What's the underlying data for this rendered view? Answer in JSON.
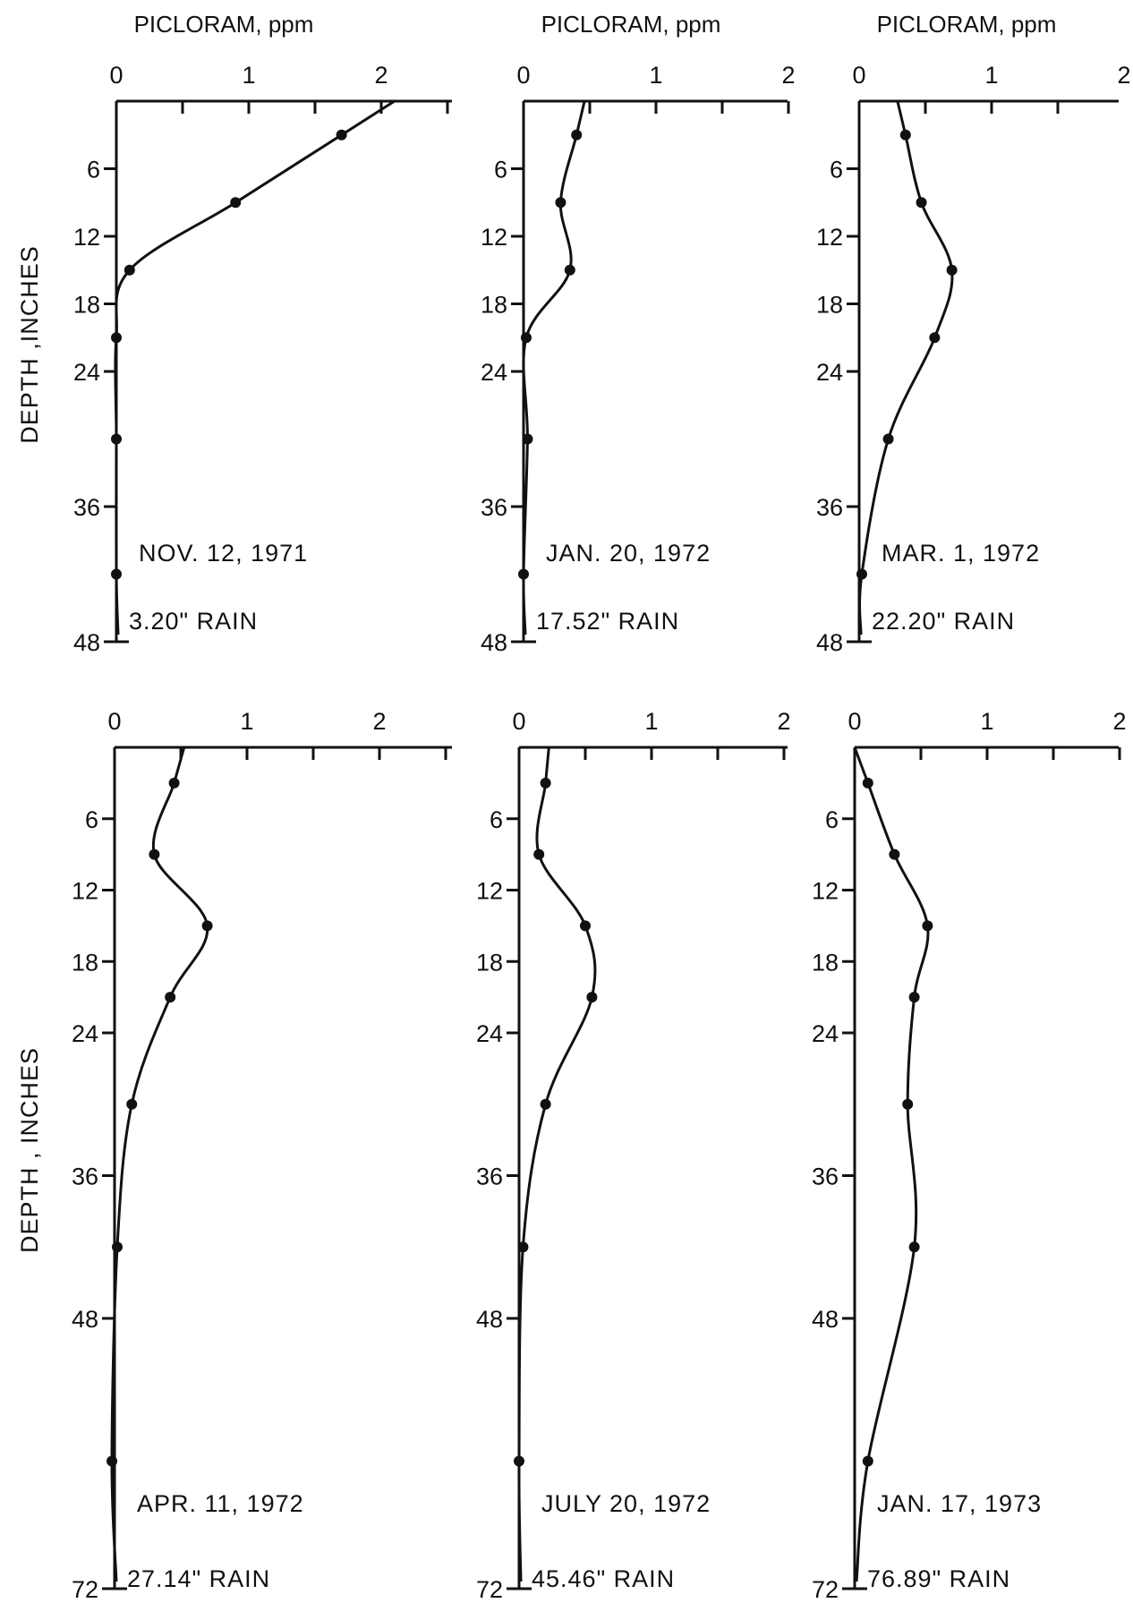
{
  "chart_data": [
    {
      "type": "line",
      "date": "NOV. 12, 1971",
      "rain": "3.20\" RAIN",
      "xlabel": "PICLORAM, ppm",
      "ylabel": "DEPTH ,INCHES",
      "xlim": [
        0,
        2
      ],
      "ylim": [
        0,
        48
      ],
      "x_ticks": [
        "0",
        "1",
        "2"
      ],
      "y_ticks": [
        "6",
        "12",
        "18",
        "24",
        "36",
        "48"
      ],
      "points": [
        {
          "x": 1.7,
          "y": 3
        },
        {
          "x": 0.9,
          "y": 9
        },
        {
          "x": 0.1,
          "y": 15
        },
        {
          "x": 0.0,
          "y": 21
        },
        {
          "x": 0.0,
          "y": 30
        },
        {
          "x": 0.0,
          "y": 42
        }
      ]
    },
    {
      "type": "line",
      "date": "JAN. 20, 1972",
      "rain": "17.52\" RAIN",
      "xlabel": "PICLORAM, ppm",
      "ylabel": "",
      "xlim": [
        0,
        2
      ],
      "ylim": [
        0,
        48
      ],
      "x_ticks": [
        "0",
        "1",
        "2"
      ],
      "y_ticks": [
        "6",
        "12",
        "18",
        "24",
        "36",
        "48"
      ],
      "points": [
        {
          "x": 0.4,
          "y": 3
        },
        {
          "x": 0.28,
          "y": 9
        },
        {
          "x": 0.35,
          "y": 15
        },
        {
          "x": 0.02,
          "y": 21
        },
        {
          "x": 0.03,
          "y": 30
        },
        {
          "x": 0.0,
          "y": 42
        }
      ]
    },
    {
      "type": "line",
      "date": "MAR. 1, 1972",
      "rain": "22.20\" RAIN",
      "xlabel": "PICLORAM, ppm",
      "ylabel": "",
      "xlim": [
        0,
        2
      ],
      "ylim": [
        0,
        48
      ],
      "x_ticks": [
        "0",
        "1",
        "2"
      ],
      "y_ticks": [
        "6",
        "12",
        "18",
        "24",
        "36",
        "48"
      ],
      "points": [
        {
          "x": 0.35,
          "y": 3
        },
        {
          "x": 0.47,
          "y": 9
        },
        {
          "x": 0.7,
          "y": 15
        },
        {
          "x": 0.57,
          "y": 21
        },
        {
          "x": 0.22,
          "y": 30
        },
        {
          "x": 0.02,
          "y": 42
        }
      ]
    },
    {
      "type": "line",
      "date": "APR. 11, 1972",
      "rain": "27.14\" RAIN",
      "xlabel": "",
      "ylabel": "DEPTH , INCHES",
      "xlim": [
        0,
        2
      ],
      "ylim": [
        0,
        72
      ],
      "x_ticks": [
        "0",
        "1",
        "2"
      ],
      "y_ticks": [
        "6",
        "12",
        "18",
        "24",
        "36",
        "48",
        "72"
      ],
      "points": [
        {
          "x": 0.45,
          "y": 3
        },
        {
          "x": 0.3,
          "y": 9
        },
        {
          "x": 0.7,
          "y": 15
        },
        {
          "x": 0.42,
          "y": 21
        },
        {
          "x": 0.13,
          "y": 30
        },
        {
          "x": 0.02,
          "y": 42
        },
        {
          "x": -0.02,
          "y": 60
        }
      ]
    },
    {
      "type": "line",
      "date": "JULY 20, 1972",
      "rain": "45.46\" RAIN",
      "xlabel": "",
      "ylabel": "",
      "xlim": [
        0,
        2
      ],
      "ylim": [
        0,
        72
      ],
      "x_ticks": [
        "0",
        "1",
        "2"
      ],
      "y_ticks": [
        "6",
        "12",
        "18",
        "24",
        "36",
        "48",
        "72"
      ],
      "points": [
        {
          "x": 0.2,
          "y": 3
        },
        {
          "x": 0.15,
          "y": 9
        },
        {
          "x": 0.5,
          "y": 15
        },
        {
          "x": 0.55,
          "y": 21
        },
        {
          "x": 0.2,
          "y": 30
        },
        {
          "x": 0.03,
          "y": 42
        },
        {
          "x": 0.0,
          "y": 60
        }
      ]
    },
    {
      "type": "line",
      "date": "JAN. 17, 1973",
      "rain": "76.89\" RAIN",
      "xlabel": "",
      "ylabel": "",
      "xlim": [
        0,
        2
      ],
      "ylim": [
        0,
        72
      ],
      "x_ticks": [
        "0",
        "1",
        "2"
      ],
      "y_ticks": [
        "6",
        "12",
        "18",
        "24",
        "36",
        "48",
        "72"
      ],
      "points": [
        {
          "x": 0.1,
          "y": 3
        },
        {
          "x": 0.3,
          "y": 9
        },
        {
          "x": 0.55,
          "y": 15
        },
        {
          "x": 0.45,
          "y": 21
        },
        {
          "x": 0.4,
          "y": 30
        },
        {
          "x": 0.45,
          "y": 42
        },
        {
          "x": 0.1,
          "y": 60
        }
      ]
    }
  ],
  "colors": {
    "ink": "#111111",
    "background": "#ffffff"
  }
}
